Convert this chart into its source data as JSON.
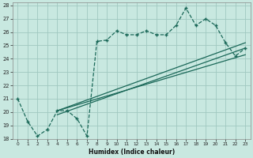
{
  "xlabel": "Humidex (Indice chaleur)",
  "bg_color": "#c8e8e0",
  "grid_color": "#a0c8c0",
  "line_color": "#1a6858",
  "xlim": [
    -0.5,
    23.5
  ],
  "ylim": [
    18,
    28.2
  ],
  "xtick_vals": [
    0,
    1,
    2,
    3,
    4,
    5,
    6,
    7,
    8,
    9,
    10,
    11,
    12,
    13,
    14,
    15,
    16,
    17,
    18,
    19,
    20,
    21,
    22,
    23
  ],
  "ytick_vals": [
    18,
    19,
    20,
    21,
    22,
    23,
    24,
    25,
    26,
    27,
    28
  ],
  "series1_x": [
    0,
    1,
    2,
    3,
    4,
    5,
    6,
    7,
    8,
    9,
    10,
    11,
    12,
    13,
    14,
    15,
    16,
    17,
    18,
    19,
    20,
    21,
    22,
    23
  ],
  "series1_y": [
    21.0,
    19.3,
    18.2,
    18.7,
    20.1,
    20.1,
    19.5,
    18.2,
    25.3,
    25.4,
    26.1,
    25.8,
    25.8,
    26.1,
    25.8,
    25.8,
    26.5,
    27.8,
    26.5,
    27.0,
    26.5,
    25.2,
    24.2,
    24.8
  ],
  "series2_x": [
    4,
    23
  ],
  "series2_y": [
    19.8,
    24.8
  ],
  "series3_x": [
    4,
    23
  ],
  "series3_y": [
    20.1,
    24.3
  ],
  "series4_x": [
    4,
    23
  ],
  "series4_y": [
    20.1,
    25.2
  ]
}
